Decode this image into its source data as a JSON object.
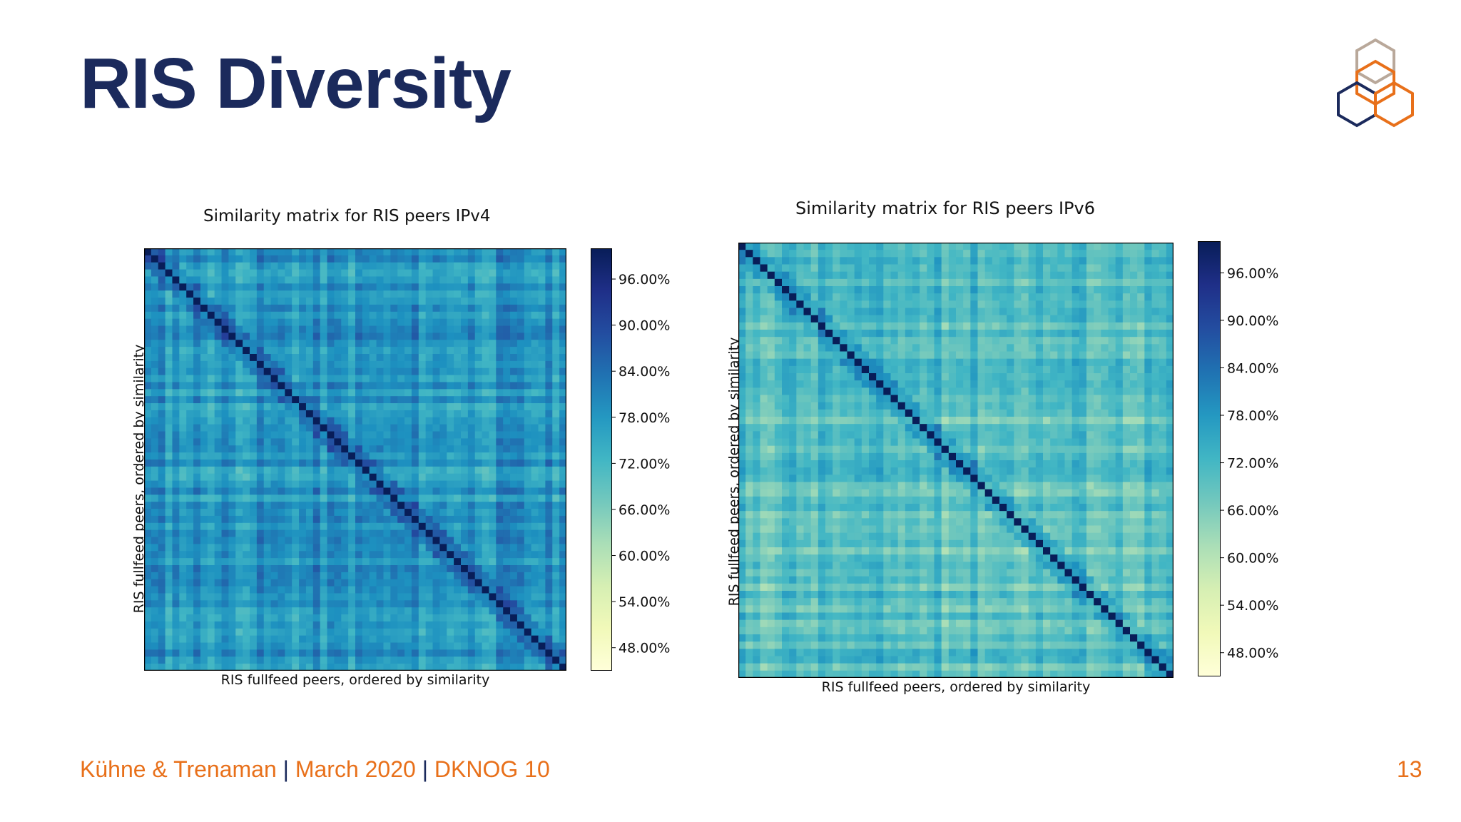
{
  "slide": {
    "title": "RIS Diversity",
    "footer": {
      "authors": "Kühne & Trenaman",
      "date": "March 2020",
      "event": "DKNOG 10",
      "separator": "|"
    },
    "page_number": "13",
    "logo_icon": "ripe-ncc-hexagon-logo",
    "colors": {
      "title": "#1b2a5c",
      "accent": "#e8701a"
    }
  },
  "chart_data": [
    {
      "type": "heatmap",
      "title": "Similarity matrix for RIS peers IPv4",
      "xlabel": "RIS fullfeed peers, ordered by similarity",
      "ylabel": "RIS fullfeed peers, ordered by similarity",
      "colormap": "YlGnBu",
      "colorbar": {
        "range": [
          0.45,
          1.0
        ],
        "ticks": [
          "96.00%",
          "90.00%",
          "84.00%",
          "78.00%",
          "72.00%",
          "66.00%",
          "60.00%",
          "54.00%",
          "48.00%"
        ],
        "tick_values": [
          0.96,
          0.9,
          0.84,
          0.78,
          0.72,
          0.66,
          0.6,
          0.54,
          0.48
        ]
      },
      "diagonal_value": 1.0,
      "typical_offdiagonal": 0.78
    },
    {
      "type": "heatmap",
      "title": "Similarity matrix for RIS peers IPv6",
      "xlabel": "RIS fullfeed peers, ordered by similarity",
      "ylabel": "RIS fullfeed peers, ordered by similarity",
      "colormap": "YlGnBu",
      "colorbar": {
        "range": [
          0.45,
          1.0
        ],
        "ticks": [
          "96.00%",
          "90.00%",
          "84.00%",
          "78.00%",
          "72.00%",
          "66.00%",
          "60.00%",
          "54.00%",
          "48.00%"
        ],
        "tick_values": [
          0.96,
          0.9,
          0.84,
          0.78,
          0.72,
          0.66,
          0.6,
          0.54,
          0.48
        ]
      },
      "diagonal_value": 1.0,
      "typical_offdiagonal": 0.7
    }
  ]
}
